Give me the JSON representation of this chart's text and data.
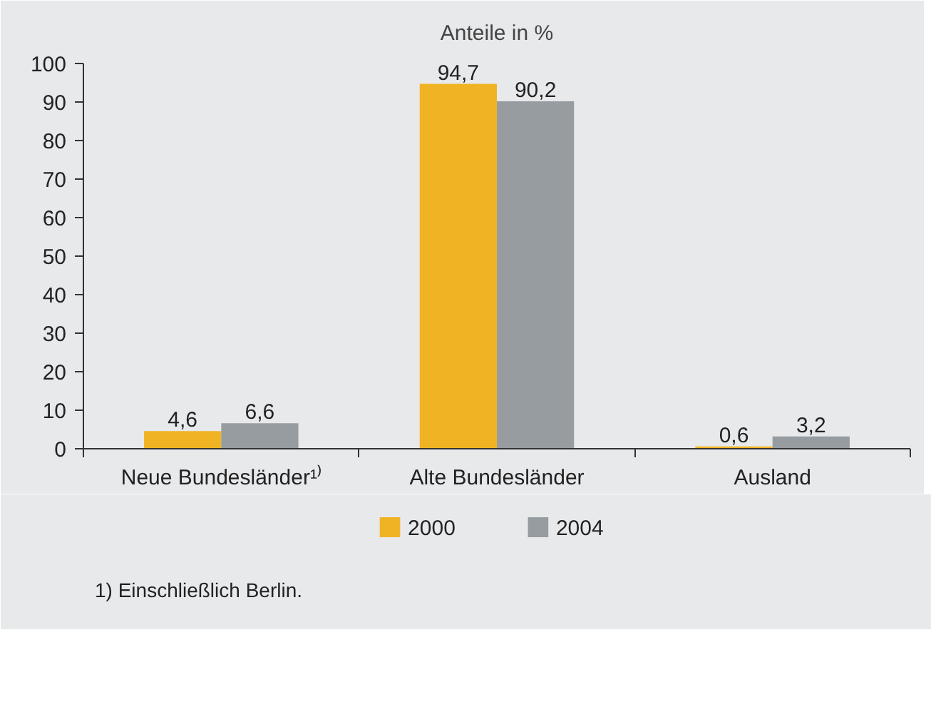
{
  "chart_data": {
    "type": "bar",
    "title": "Anteile in %",
    "categories": [
      "Neue Bundesländer¹⁾",
      "Alte Bundesländer",
      "Ausland"
    ],
    "series": [
      {
        "name": "2000",
        "color": "#f0b323",
        "values": [
          4.6,
          94.7,
          0.6
        ],
        "value_labels": [
          "4,6",
          "94,7",
          "0,6"
        ]
      },
      {
        "name": "2004",
        "color": "#979ca0",
        "values": [
          6.6,
          90.2,
          3.2
        ],
        "value_labels": [
          "6,6",
          "90,2",
          "3,2"
        ]
      }
    ],
    "ylim": [
      0,
      100
    ],
    "yticks": [
      0,
      10,
      20,
      30,
      40,
      50,
      60,
      70,
      80,
      90,
      100
    ],
    "grid": false,
    "legend": "bottom",
    "annotations": [
      "1) Einschließlich Berlin."
    ]
  }
}
